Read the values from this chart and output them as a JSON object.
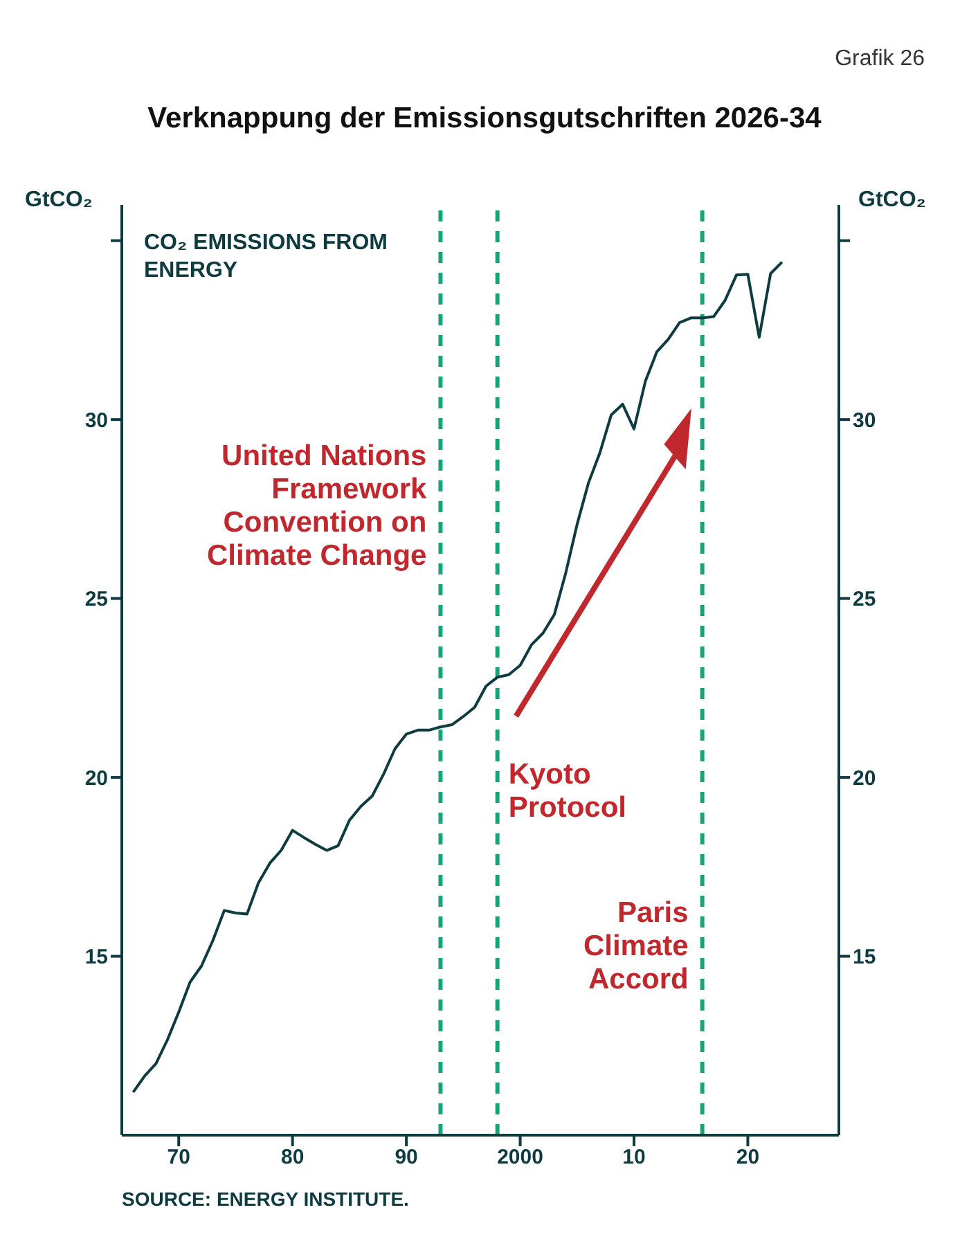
{
  "chart_data": {
    "type": "line",
    "title": "Verknappung der Emissionsgutschriften 2026-34",
    "ylabel": "GtCO₂",
    "y2label": "GtCO₂",
    "annotations": [
      "Grafik 26",
      "CO₂ EMISSIONS FROM ENERGY",
      "SOURCE: ENERGY INSTITUTE."
    ],
    "x": [
      1966,
      1967,
      1968,
      1969,
      1970,
      1971,
      1972,
      1973,
      1974,
      1975,
      1976,
      1977,
      1978,
      1979,
      1980,
      1981,
      1982,
      1983,
      1984,
      1985,
      1986,
      1987,
      1988,
      1989,
      1990,
      1991,
      1992,
      1993,
      1994,
      1995,
      1996,
      1997,
      1998,
      1999,
      2000,
      2001,
      2002,
      2003,
      2004,
      2005,
      2006,
      2007,
      2008,
      2009,
      2010,
      2011,
      2012,
      2013,
      2014,
      2015,
      2016,
      2017,
      2018,
      2019,
      2020,
      2021,
      2022,
      2023
    ],
    "series": [
      {
        "color": "#0d3b3f",
        "values": [
          11.2,
          11.65,
          12.0,
          12.66,
          13.44,
          14.28,
          14.73,
          15.44,
          16.28,
          16.21,
          16.18,
          17.05,
          17.6,
          17.96,
          18.52,
          18.32,
          18.13,
          17.96,
          18.09,
          18.8,
          19.19,
          19.48,
          20.09,
          20.8,
          21.21,
          21.32,
          21.32,
          21.41,
          21.47,
          21.7,
          21.96,
          22.55,
          22.8,
          22.87,
          23.13,
          23.71,
          24.03,
          24.55,
          25.71,
          27.07,
          28.23,
          29.07,
          30.13,
          30.43,
          29.74,
          31.07,
          31.89,
          32.24,
          32.71,
          32.84,
          32.84,
          32.88,
          33.33,
          34.04,
          34.06,
          32.3,
          34.08,
          34.4
        ]
      }
    ],
    "xlim": [
      1965,
      2028
    ],
    "xticks": [
      {
        "value": 1970,
        "label": "70"
      },
      {
        "value": 1980,
        "label": "80"
      },
      {
        "value": 1990,
        "label": "90"
      },
      {
        "value": 2000,
        "label": "2000"
      },
      {
        "value": 2010,
        "label": "10"
      },
      {
        "value": 2020,
        "label": "20"
      }
    ],
    "ylim": [
      10,
      36
    ],
    "yticks": [
      15,
      20,
      25,
      30,
      {
        "value": 35,
        "label": null
      }
    ],
    "y2lim": [
      10,
      36
    ],
    "y2ticks": [
      15,
      20,
      25,
      30,
      {
        "value": 35,
        "label": null
      }
    ],
    "ref_lines": [
      {
        "axis": "x",
        "value": 1993,
        "label": "United Nations Framework Convention on Climate Change",
        "color": "#1aa37a",
        "line_style": "dashed"
      },
      {
        "axis": "x",
        "value": 1998,
        "label": "Kyoto Protocol",
        "color": "#1aa37a",
        "line_style": "dashed"
      },
      {
        "axis": "x",
        "value": 2016,
        "label": "Paris Climate Accord",
        "color": "#1aa37a",
        "line_style": "dashed"
      }
    ]
  }
}
